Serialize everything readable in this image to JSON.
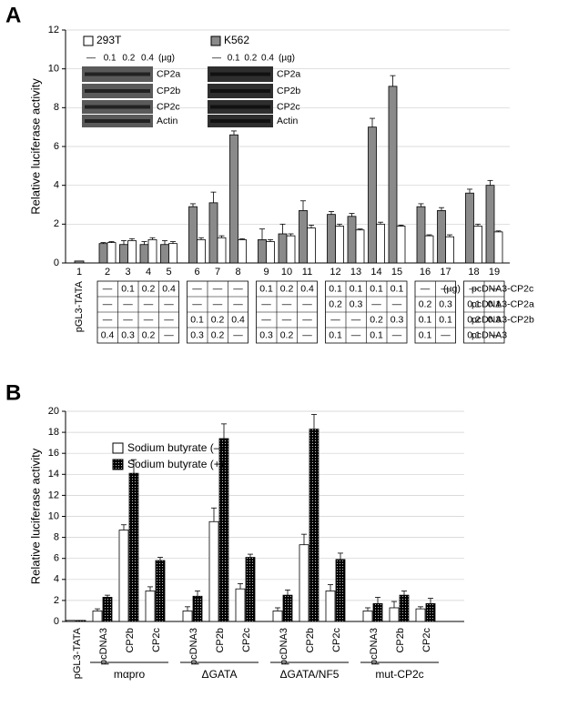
{
  "chart_data": [
    {
      "panel": "A",
      "type": "bar",
      "y_label": "Relative luciferase activity",
      "ylim": [
        0,
        12
      ],
      "yticks": [
        0,
        2,
        4,
        6,
        8,
        10,
        12
      ],
      "grid": true,
      "categories": [
        "1",
        "2",
        "3",
        "4",
        "5",
        "6",
        "7",
        "8",
        "9",
        "10",
        "11",
        "12",
        "13",
        "14",
        "15",
        "16",
        "17",
        "18",
        "19"
      ],
      "series": [
        {
          "name": "K562",
          "color": "#8a8a8a",
          "values": [
            0.1,
            1.0,
            0.95,
            0.95,
            0.95,
            2.9,
            3.1,
            6.6,
            1.2,
            1.5,
            2.7,
            2.5,
            2.4,
            7.0,
            9.1,
            2.9,
            2.7,
            3.6,
            4.0
          ],
          "errors": [
            null,
            0.05,
            0.2,
            0.15,
            0.2,
            0.15,
            0.55,
            0.2,
            0.55,
            0.5,
            0.5,
            0.15,
            0.15,
            0.45,
            0.55,
            0.15,
            0.15,
            0.2,
            0.25
          ]
        },
        {
          "name": "293T",
          "color": "#ffffff",
          "values": [
            null,
            1.05,
            1.15,
            1.2,
            1.0,
            1.2,
            1.3,
            1.2,
            1.1,
            1.4,
            1.8,
            1.9,
            1.7,
            2.0,
            1.9,
            1.4,
            1.35,
            1.9,
            1.6
          ],
          "errors": [
            null,
            0.05,
            0.1,
            0.1,
            0.1,
            0.1,
            0.1,
            0.05,
            0.1,
            0.1,
            0.15,
            0.1,
            0.05,
            0.1,
            0.05,
            0.05,
            0.1,
            0.1,
            0.05
          ]
        }
      ],
      "blot": {
        "header": [
          "—",
          "0.1",
          "0.2",
          "0.4"
        ],
        "unit": "(µg)",
        "rows": [
          "CP2a",
          "CP2b",
          "CP2c",
          "Actin"
        ]
      },
      "table": {
        "first_lane_label": "pGL3-TATA",
        "unit": "(µg)",
        "row_labels": [
          "pcDNA3-CP2c",
          "pcDNA3-CP2a",
          "pcDNA3-CP2b",
          "pcDNA3"
        ],
        "groups": [
          [
            [
              "—",
              "0.1",
              "0.2",
              "0.4"
            ],
            [
              "—",
              "—",
              "—",
              "—"
            ],
            [
              "—",
              "—",
              "—",
              "—"
            ],
            [
              "0.4",
              "0.3",
              "0.2",
              "—"
            ]
          ],
          [
            [
              "—",
              "—",
              "—"
            ],
            [
              "—",
              "—",
              "—"
            ],
            [
              "0.1",
              "0.2",
              "0.4"
            ],
            [
              "0.3",
              "0.2",
              "—"
            ]
          ],
          [
            [
              "0.1",
              "0.2",
              "0.4"
            ],
            [
              "—",
              "—",
              "—"
            ],
            [
              "—",
              "—",
              "—"
            ],
            [
              "0.3",
              "0.2",
              "—"
            ]
          ],
          [
            [
              "0.1",
              "0.1",
              "0.1",
              "0.1"
            ],
            [
              "0.2",
              "0.3",
              "—",
              "—"
            ],
            [
              "—",
              "—",
              "0.2",
              "0.3"
            ],
            [
              "0.1",
              "—",
              "0.1",
              "—"
            ]
          ],
          [
            [
              "—",
              "—"
            ],
            [
              "0.2",
              "0.3"
            ],
            [
              "0.1",
              "0.1"
            ],
            [
              "0.1",
              "—"
            ]
          ],
          [
            [
              "—",
              "—"
            ],
            [
              "0.1",
              "0.1"
            ],
            [
              "0.2",
              "0.3"
            ],
            [
              "0.1",
              "—"
            ]
          ]
        ]
      }
    },
    {
      "panel": "B",
      "type": "bar",
      "y_label": "Relative luciferase activity",
      "ylim": [
        0,
        20
      ],
      "yticks": [
        0,
        2,
        4,
        6,
        8,
        10,
        12,
        14,
        16,
        18,
        20
      ],
      "grid": true,
      "categories": [
        "pGL3-TATA",
        "pcDNA3",
        "CP2b",
        "CP2c",
        "pcDNA3",
        "CP2b",
        "CP2c",
        "pcDNA3",
        "CP2b",
        "CP2c",
        "pcDNA3",
        "CP2b",
        "CP2c"
      ],
      "group_labels": [
        "mαpro",
        "ΔGATA",
        "ΔGATA/NF5",
        "mut-CP2c"
      ],
      "series": [
        {
          "name": "Sodium butyrate (–)",
          "color": "#ffffff",
          "values": [
            0.1,
            1.0,
            8.7,
            2.9,
            1.0,
            9.5,
            3.1,
            1.0,
            7.3,
            2.9,
            1.0,
            1.3,
            1.2
          ],
          "errors": [
            null,
            0.2,
            0.5,
            0.4,
            0.4,
            1.3,
            0.5,
            0.3,
            1.0,
            0.6,
            0.3,
            0.6,
            0.2
          ]
        },
        {
          "name": "Sodium butyrate (+)",
          "color": "#000000",
          "pattern": "dots",
          "values": [
            0.1,
            2.3,
            14.1,
            5.8,
            2.4,
            17.4,
            6.1,
            2.5,
            18.3,
            5.9,
            1.7,
            2.5,
            1.7
          ],
          "errors": [
            null,
            0.2,
            1.3,
            0.3,
            0.5,
            1.4,
            0.3,
            0.5,
            1.4,
            0.6,
            0.6,
            0.4,
            0.5
          ]
        }
      ]
    }
  ]
}
